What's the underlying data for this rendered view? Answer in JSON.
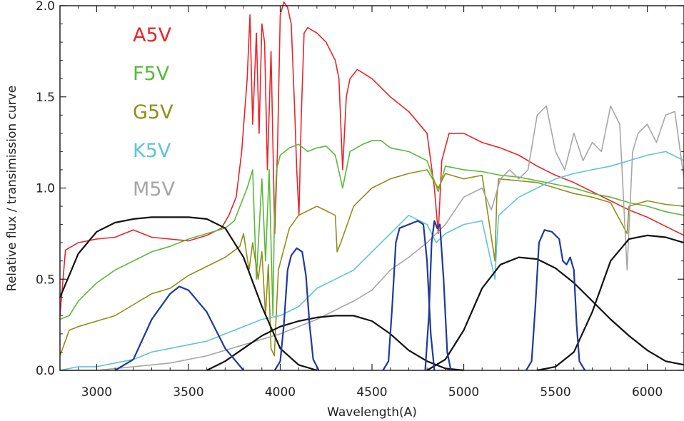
{
  "chart_data": {
    "type": "line",
    "title": "",
    "xlabel": "Wavelength(A)",
    "ylabel": "Relative flux / transimission curve",
    "xlim": [
      2800,
      6200
    ],
    "ylim": [
      0.0,
      2.0
    ],
    "x_ticks": [
      3000,
      3500,
      4000,
      4500,
      5000,
      5500,
      6000
    ],
    "y_ticks": [
      0.0,
      0.5,
      1.0,
      1.5,
      2.0
    ],
    "y_tick_labels": [
      "0.0",
      "0.5",
      "1.0",
      "1.5",
      "2.0"
    ],
    "grid": false,
    "legend_position": "top-left",
    "series": [
      {
        "name": "A5V",
        "kind": "spectrum",
        "color": "#e8252a",
        "x": [
          2800,
          2830,
          2900,
          3000,
          3100,
          3200,
          3300,
          3400,
          3500,
          3600,
          3680,
          3720,
          3760,
          3790,
          3820,
          3835,
          3850,
          3870,
          3885,
          3900,
          3915,
          3930,
          3950,
          3970,
          3985,
          4000,
          4020,
          4040,
          4060,
          4080,
          4090,
          4102,
          4115,
          4130,
          4150,
          4200,
          4250,
          4300,
          4320,
          4340,
          4360,
          4380,
          4420,
          4500,
          4600,
          4700,
          4800,
          4840,
          4861,
          4880,
          4920,
          5000,
          5100,
          5200,
          5300,
          5400,
          5500,
          5600,
          5700,
          5800,
          5900,
          6000,
          6100,
          6200
        ],
        "y": [
          0.3,
          0.66,
          0.7,
          0.72,
          0.73,
          0.77,
          0.73,
          0.72,
          0.71,
          0.74,
          0.78,
          0.85,
          0.95,
          1.2,
          1.6,
          1.95,
          1.35,
          1.85,
          1.3,
          1.9,
          1.8,
          1.1,
          1.75,
          0.75,
          1.2,
          1.95,
          2.02,
          1.99,
          1.9,
          1.4,
          1.1,
          0.85,
          1.4,
          1.85,
          1.88,
          1.85,
          1.8,
          1.7,
          1.6,
          1.1,
          1.5,
          1.6,
          1.65,
          1.6,
          1.5,
          1.42,
          1.3,
          1.0,
          0.75,
          1.15,
          1.3,
          1.3,
          1.25,
          1.22,
          1.18,
          1.12,
          1.07,
          1.03,
          0.98,
          0.93,
          0.88,
          0.84,
          0.79,
          0.74
        ]
      },
      {
        "name": "F5V",
        "kind": "spectrum",
        "color": "#59b93a",
        "x": [
          2800,
          2850,
          2900,
          3000,
          3100,
          3200,
          3300,
          3400,
          3500,
          3600,
          3700,
          3750,
          3800,
          3820,
          3850,
          3870,
          3900,
          3920,
          3940,
          3960,
          3968,
          3980,
          4000,
          4050,
          4100,
          4150,
          4200,
          4250,
          4300,
          4340,
          4380,
          4450,
          4500,
          4550,
          4600,
          4700,
          4800,
          4861,
          4900,
          5000,
          5100,
          5200,
          5300,
          5400,
          5500,
          5600,
          5700,
          5800,
          5900,
          6000,
          6100,
          6200
        ],
        "y": [
          0.28,
          0.3,
          0.38,
          0.48,
          0.55,
          0.6,
          0.65,
          0.68,
          0.72,
          0.75,
          0.78,
          0.82,
          0.95,
          1.0,
          1.1,
          0.5,
          1.05,
          0.6,
          1.1,
          0.3,
          0.8,
          1.1,
          1.18,
          1.22,
          1.24,
          1.2,
          1.22,
          1.23,
          1.18,
          1.0,
          1.2,
          1.24,
          1.26,
          1.26,
          1.22,
          1.2,
          1.15,
          0.98,
          1.12,
          1.1,
          1.09,
          1.07,
          1.06,
          1.04,
          1.02,
          1.0,
          0.97,
          0.95,
          0.92,
          0.9,
          0.87,
          0.85
        ]
      },
      {
        "name": "G5V",
        "kind": "spectrum",
        "color": "#8f8f1a",
        "x": [
          2800,
          2850,
          2900,
          3000,
          3100,
          3200,
          3300,
          3400,
          3500,
          3600,
          3700,
          3780,
          3800,
          3830,
          3850,
          3880,
          3900,
          3920,
          3935,
          3950,
          3968,
          3990,
          4050,
          4100,
          4200,
          4300,
          4310,
          4330,
          4400,
          4500,
          4600,
          4700,
          4800,
          4861,
          4900,
          5000,
          5100,
          5170,
          5180,
          5190,
          5300,
          5400,
          5500,
          5600,
          5700,
          5800,
          5890,
          5900,
          6000,
          6100,
          6200
        ],
        "y": [
          0.08,
          0.22,
          0.24,
          0.27,
          0.3,
          0.36,
          0.42,
          0.45,
          0.52,
          0.57,
          0.62,
          0.68,
          0.75,
          0.55,
          0.7,
          0.5,
          0.65,
          0.3,
          0.58,
          0.12,
          0.08,
          0.55,
          0.78,
          0.85,
          0.9,
          0.85,
          0.65,
          0.7,
          0.9,
          1.0,
          1.05,
          1.08,
          1.1,
          1.0,
          1.08,
          1.05,
          1.07,
          0.6,
          0.95,
          1.05,
          1.04,
          1.03,
          1.0,
          0.97,
          0.95,
          0.92,
          0.75,
          0.9,
          0.93,
          0.91,
          0.9
        ]
      },
      {
        "name": "K5V",
        "kind": "spectrum",
        "color": "#5ec4d6",
        "x": [
          2800,
          2900,
          3000,
          3100,
          3200,
          3300,
          3400,
          3500,
          3600,
          3700,
          3800,
          3900,
          4000,
          4100,
          4200,
          4300,
          4400,
          4500,
          4600,
          4700,
          4800,
          4850,
          4900,
          5000,
          5100,
          5170,
          5180,
          5190,
          5300,
          5400,
          5500,
          5600,
          5700,
          5800,
          5900,
          6000,
          6100,
          6200
        ],
        "y": [
          0.0,
          0.02,
          0.02,
          0.04,
          0.06,
          0.1,
          0.12,
          0.14,
          0.16,
          0.2,
          0.24,
          0.28,
          0.3,
          0.35,
          0.45,
          0.5,
          0.55,
          0.65,
          0.75,
          0.85,
          0.8,
          0.7,
          0.75,
          0.8,
          0.82,
          0.5,
          0.7,
          0.85,
          0.95,
          1.0,
          1.05,
          1.08,
          1.1,
          1.12,
          1.15,
          1.18,
          1.2,
          1.15
        ]
      },
      {
        "name": "M5V",
        "kind": "spectrum",
        "color": "#a6a6a6",
        "x": [
          2800,
          3000,
          3200,
          3400,
          3600,
          3800,
          4000,
          4200,
          4400,
          4500,
          4600,
          4700,
          4800,
          4900,
          5000,
          5100,
          5150,
          5200,
          5250,
          5300,
          5350,
          5400,
          5450,
          5500,
          5550,
          5600,
          5650,
          5700,
          5750,
          5800,
          5850,
          5890,
          5920,
          5950,
          6000,
          6050,
          6100,
          6150,
          6200
        ],
        "y": [
          0.0,
          0.0,
          0.02,
          0.04,
          0.08,
          0.14,
          0.2,
          0.28,
          0.38,
          0.44,
          0.55,
          0.62,
          0.7,
          0.8,
          0.95,
          1.0,
          0.88,
          1.05,
          1.1,
          1.05,
          1.1,
          1.4,
          1.45,
          1.2,
          1.1,
          1.3,
          1.15,
          1.25,
          1.2,
          1.45,
          1.35,
          0.55,
          1.2,
          1.3,
          1.35,
          1.25,
          1.4,
          1.42,
          1.05
        ]
      },
      {
        "name": "",
        "kind": "filter",
        "color": "#111111",
        "x": [
          2800,
          2900,
          3000,
          3100,
          3200,
          3300,
          3400,
          3500,
          3600,
          3700,
          3800,
          3900,
          4000,
          4100,
          4200
        ],
        "y": [
          0.4,
          0.64,
          0.76,
          0.81,
          0.83,
          0.84,
          0.84,
          0.84,
          0.83,
          0.78,
          0.62,
          0.35,
          0.12,
          0.03,
          0.0
        ]
      },
      {
        "name": "",
        "kind": "filter",
        "color": "#111111",
        "x": [
          3600,
          3700,
          3800,
          3900,
          4000,
          4100,
          4200,
          4300,
          4350,
          4400,
          4500,
          4600,
          4700,
          4800,
          4900,
          5000
        ],
        "y": [
          0.0,
          0.05,
          0.12,
          0.19,
          0.24,
          0.27,
          0.29,
          0.3,
          0.3,
          0.3,
          0.27,
          0.2,
          0.11,
          0.05,
          0.01,
          0.0
        ]
      },
      {
        "name": "",
        "kind": "filter",
        "color": "#111111",
        "x": [
          4800,
          4900,
          5000,
          5100,
          5200,
          5300,
          5400,
          5500,
          5600,
          5700,
          5800,
          5900,
          6000,
          6100,
          6200
        ],
        "y": [
          0.0,
          0.06,
          0.22,
          0.45,
          0.58,
          0.62,
          0.61,
          0.56,
          0.48,
          0.38,
          0.28,
          0.19,
          0.11,
          0.05,
          0.03
        ]
      },
      {
        "name": "",
        "kind": "filter",
        "color": "#111111",
        "x": [
          5400,
          5500,
          5600,
          5700,
          5800,
          5900,
          6000,
          6100,
          6200
        ],
        "y": [
          0.0,
          0.02,
          0.1,
          0.32,
          0.6,
          0.72,
          0.74,
          0.73,
          0.7
        ]
      },
      {
        "name": "",
        "kind": "filter",
        "color": "#1f3a9a",
        "x": [
          3100,
          3200,
          3300,
          3400,
          3450,
          3500,
          3600,
          3700,
          3800
        ],
        "y": [
          0.0,
          0.06,
          0.28,
          0.42,
          0.46,
          0.44,
          0.32,
          0.12,
          0.0
        ]
      },
      {
        "name": "",
        "kind": "filter",
        "color": "#1f3a9a",
        "x": [
          3970,
          4000,
          4020,
          4040,
          4060,
          4090,
          4120,
          4140,
          4160,
          4180,
          4210
        ],
        "y": [
          0.0,
          0.05,
          0.25,
          0.55,
          0.63,
          0.67,
          0.65,
          0.52,
          0.25,
          0.06,
          0.0
        ]
      },
      {
        "name": "",
        "kind": "filter",
        "color": "#1f3a9a",
        "x": [
          4560,
          4590,
          4610,
          4630,
          4650,
          4700,
          4750,
          4780,
          4800,
          4820,
          4840
        ],
        "y": [
          0.0,
          0.05,
          0.35,
          0.7,
          0.78,
          0.8,
          0.82,
          0.8,
          0.6,
          0.2,
          0.0
        ]
      },
      {
        "name": "",
        "kind": "filter",
        "color": "#1f3a9a",
        "x": [
          4790,
          4810,
          4825,
          4840,
          4855,
          4870,
          4890,
          4910,
          4930
        ],
        "y": [
          0.0,
          0.3,
          0.7,
          0.82,
          0.78,
          0.8,
          0.5,
          0.1,
          0.0
        ]
      },
      {
        "name": "",
        "kind": "filter",
        "color": "#1f3a9a",
        "x": [
          5340,
          5370,
          5390,
          5410,
          5440,
          5480,
          5520,
          5540,
          5560,
          5580,
          5600,
          5615,
          5630,
          5660
        ],
        "y": [
          0.0,
          0.05,
          0.35,
          0.7,
          0.77,
          0.76,
          0.72,
          0.6,
          0.58,
          0.62,
          0.55,
          0.25,
          0.05,
          0.0
        ]
      }
    ]
  }
}
